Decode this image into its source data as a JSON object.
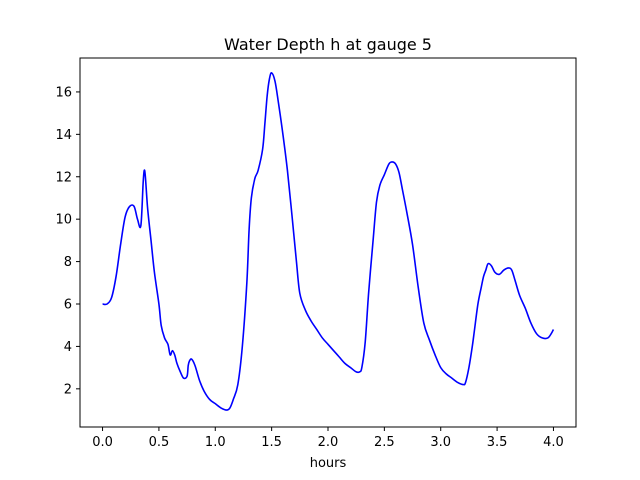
{
  "chart_data": {
    "type": "line",
    "title": "Water Depth h at gauge 5",
    "xlabel": "hours",
    "ylabel": "",
    "xlim": [
      -0.2,
      4.2
    ],
    "ylim": [
      0.2,
      17.6
    ],
    "xticks": [
      0.0,
      0.5,
      1.0,
      1.5,
      2.0,
      2.5,
      3.0,
      3.5,
      4.0
    ],
    "xtick_labels": [
      "0.0",
      "0.5",
      "1.0",
      "1.5",
      "2.0",
      "2.5",
      "3.0",
      "3.5",
      "4.0"
    ],
    "yticks": [
      2,
      4,
      6,
      8,
      10,
      12,
      14,
      16
    ],
    "ytick_labels": [
      "2",
      "4",
      "6",
      "8",
      "10",
      "12",
      "14",
      "16"
    ],
    "grid": false,
    "line_color": "#0000ff",
    "series": [
      {
        "x": [
          0.0,
          0.04,
          0.08,
          0.12,
          0.16,
          0.2,
          0.24,
          0.28,
          0.31,
          0.34,
          0.36,
          0.37,
          0.38,
          0.4,
          0.43,
          0.46,
          0.5,
          0.52,
          0.55,
          0.58,
          0.6,
          0.62,
          0.64,
          0.66,
          0.69,
          0.72,
          0.75,
          0.76,
          0.77,
          0.79,
          0.82,
          0.86,
          0.9,
          0.95,
          1.0,
          1.05,
          1.1,
          1.13,
          1.16,
          1.2,
          1.24,
          1.28,
          1.3,
          1.32,
          1.35,
          1.38,
          1.42,
          1.44,
          1.46,
          1.48,
          1.5,
          1.53,
          1.56,
          1.6,
          1.64,
          1.68,
          1.72,
          1.75,
          1.8,
          1.85,
          1.9,
          1.95,
          2.0,
          2.05,
          2.1,
          2.15,
          2.2,
          2.25,
          2.28,
          2.3,
          2.33,
          2.36,
          2.4,
          2.43,
          2.46,
          2.5,
          2.54,
          2.57,
          2.6,
          2.63,
          2.66,
          2.7,
          2.75,
          2.8,
          2.85,
          2.9,
          2.95,
          3.0,
          3.05,
          3.1,
          3.15,
          3.2,
          3.22,
          3.25,
          3.28,
          3.3,
          3.33,
          3.36,
          3.38,
          3.4,
          3.42,
          3.45,
          3.48,
          3.52,
          3.56,
          3.6,
          3.63,
          3.66,
          3.7,
          3.75,
          3.8,
          3.85,
          3.9,
          3.95,
          3.98,
          4.0
        ],
        "y": [
          6.0,
          6.0,
          6.3,
          7.3,
          8.8,
          10.1,
          10.6,
          10.6,
          10.0,
          9.7,
          11.7,
          12.3,
          12.0,
          10.5,
          9.0,
          7.5,
          6.0,
          5.0,
          4.4,
          4.1,
          3.6,
          3.8,
          3.6,
          3.2,
          2.8,
          2.5,
          2.6,
          3.1,
          3.3,
          3.4,
          3.1,
          2.4,
          1.9,
          1.5,
          1.3,
          1.1,
          1.0,
          1.1,
          1.5,
          2.2,
          4.0,
          7.0,
          9.5,
          11.0,
          11.9,
          12.3,
          13.3,
          14.5,
          15.8,
          16.6,
          16.9,
          16.5,
          15.5,
          14.0,
          12.3,
          10.2,
          8.0,
          6.5,
          5.7,
          5.2,
          4.8,
          4.4,
          4.1,
          3.8,
          3.5,
          3.2,
          3.0,
          2.8,
          2.8,
          3.0,
          4.2,
          6.5,
          9.0,
          10.8,
          11.6,
          12.1,
          12.6,
          12.7,
          12.6,
          12.2,
          11.4,
          10.3,
          8.8,
          6.8,
          5.1,
          4.3,
          3.6,
          3.0,
          2.7,
          2.5,
          2.3,
          2.2,
          2.3,
          3.0,
          4.0,
          4.8,
          6.0,
          6.8,
          7.3,
          7.6,
          7.9,
          7.8,
          7.5,
          7.4,
          7.6,
          7.7,
          7.6,
          7.1,
          6.4,
          5.8,
          5.1,
          4.6,
          4.4,
          4.4,
          4.6,
          4.8
        ]
      }
    ]
  }
}
